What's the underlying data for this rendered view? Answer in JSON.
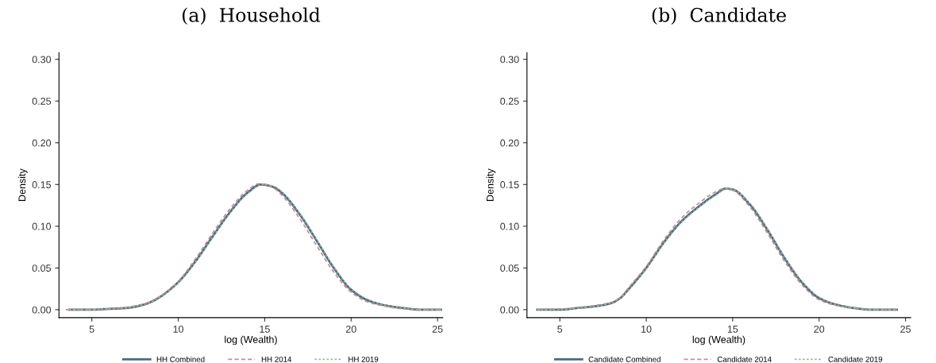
{
  "chart_data": [
    {
      "type": "line",
      "title": "(a)  Household",
      "xlabel": "log (Wealth)",
      "ylabel": "Density",
      "xlim": [
        3.1,
        25.3
      ],
      "ylim": [
        -0.0095,
        0.308
      ],
      "xticks": [
        5,
        10,
        15,
        20,
        25
      ],
      "yticks": [
        {
          "value": 0,
          "label": "0.00"
        },
        {
          "value": 0.05,
          "label": "0.05"
        },
        {
          "value": 0.1,
          "label": "0.10"
        },
        {
          "value": 0.15,
          "label": "0.15"
        },
        {
          "value": 0.2,
          "label": "0.20"
        },
        {
          "value": 0.25,
          "label": "0.25"
        },
        {
          "value": 0.3,
          "label": "0.30"
        }
      ],
      "grid": false,
      "legend": "bottom",
      "series": [
        {
          "name": "HH Combined",
          "color": "#4a6a85",
          "line_style": "solid",
          "x": [
            3.7,
            5,
            6,
            7,
            8,
            8.5,
            9,
            10,
            11,
            12,
            13,
            14,
            14.8,
            15.5,
            16,
            17,
            18,
            19,
            20,
            21,
            22,
            23,
            24,
            25.2
          ],
          "values": [
            0,
            0,
            0.001,
            0.002,
            0.006,
            0.01,
            0.016,
            0.033,
            0.058,
            0.088,
            0.117,
            0.14,
            0.15,
            0.147,
            0.14,
            0.115,
            0.083,
            0.05,
            0.024,
            0.011,
            0.005,
            0.002,
            0,
            0
          ]
        },
        {
          "name": "HH 2014",
          "color": "#c8898d",
          "line_style": "dashed",
          "x": [
            3.5,
            5,
            6,
            7,
            8,
            8.5,
            9,
            10,
            11,
            12,
            13,
            14,
            14.7,
            15.5,
            16,
            17,
            18,
            19,
            20,
            21,
            22,
            23,
            24,
            25.2
          ],
          "values": [
            0,
            0,
            0.001,
            0.003,
            0.007,
            0.011,
            0.017,
            0.034,
            0.061,
            0.092,
            0.121,
            0.143,
            0.151,
            0.146,
            0.137,
            0.11,
            0.077,
            0.045,
            0.021,
            0.009,
            0.004,
            0.001,
            0,
            0
          ]
        },
        {
          "name": "HH 2019",
          "color": "#9ab58a",
          "line_style": "dotted",
          "x": [
            3.7,
            5,
            6,
            7,
            8,
            8.5,
            9,
            10,
            11,
            12,
            13,
            14,
            14.9,
            15.5,
            16,
            17,
            18,
            19,
            20,
            21,
            22,
            23,
            24,
            25.2
          ],
          "values": [
            0,
            0,
            0.001,
            0.002,
            0.006,
            0.01,
            0.016,
            0.032,
            0.057,
            0.087,
            0.116,
            0.139,
            0.15,
            0.148,
            0.141,
            0.116,
            0.084,
            0.051,
            0.025,
            0.012,
            0.005,
            0.002,
            0,
            0
          ]
        }
      ]
    },
    {
      "type": "line",
      "title": "(b)  Candidate",
      "xlabel": "log (Wealth)",
      "ylabel": "Density",
      "xlim": [
        3.1,
        25.3
      ],
      "ylim": [
        -0.0095,
        0.308
      ],
      "xticks": [
        5,
        10,
        15,
        20,
        25
      ],
      "yticks": [
        {
          "value": 0,
          "label": "0.00"
        },
        {
          "value": 0.05,
          "label": "0.05"
        },
        {
          "value": 0.1,
          "label": "0.10"
        },
        {
          "value": 0.15,
          "label": "0.15"
        },
        {
          "value": 0.2,
          "label": "0.20"
        },
        {
          "value": 0.25,
          "label": "0.25"
        },
        {
          "value": 0.3,
          "label": "0.30"
        }
      ],
      "grid": false,
      "legend": "bottom",
      "series": [
        {
          "name": "Candidate Combined",
          "color": "#4a6a85",
          "line_style": "solid",
          "x": [
            3.7,
            5,
            6,
            7,
            8,
            8.5,
            9,
            10,
            11,
            12,
            13,
            14,
            14.6,
            15,
            16,
            17,
            18,
            19,
            20,
            21,
            22,
            23,
            24.5
          ],
          "values": [
            0,
            0,
            0.002,
            0.004,
            0.008,
            0.014,
            0.025,
            0.05,
            0.08,
            0.105,
            0.123,
            0.138,
            0.145,
            0.144,
            0.126,
            0.096,
            0.062,
            0.033,
            0.014,
            0.006,
            0.002,
            0,
            0
          ]
        },
        {
          "name": "Candidate 2014",
          "color": "#c8898d",
          "line_style": "dashed",
          "x": [
            3.7,
            5,
            6,
            7,
            8,
            8.5,
            9,
            10,
            11,
            12,
            13,
            14,
            14.5,
            15,
            16,
            17,
            18,
            19,
            20,
            21,
            22,
            23,
            24.5
          ],
          "values": [
            0,
            0.001,
            0.002,
            0.005,
            0.009,
            0.015,
            0.027,
            0.052,
            0.083,
            0.109,
            0.127,
            0.141,
            0.145,
            0.143,
            0.123,
            0.092,
            0.058,
            0.03,
            0.012,
            0.005,
            0.002,
            0,
            0
          ]
        },
        {
          "name": "Candidate 2019",
          "color": "#9ab58a",
          "line_style": "dotted",
          "x": [
            3.7,
            5,
            6,
            7,
            8,
            8.5,
            9,
            10,
            11,
            12,
            13,
            14,
            14.7,
            15,
            16,
            17,
            18,
            19,
            20,
            21,
            22,
            23,
            24.5
          ],
          "values": [
            0,
            0,
            0.002,
            0.004,
            0.008,
            0.014,
            0.024,
            0.049,
            0.079,
            0.104,
            0.122,
            0.137,
            0.145,
            0.144,
            0.127,
            0.097,
            0.063,
            0.034,
            0.015,
            0.006,
            0.002,
            0,
            0
          ]
        }
      ]
    }
  ]
}
